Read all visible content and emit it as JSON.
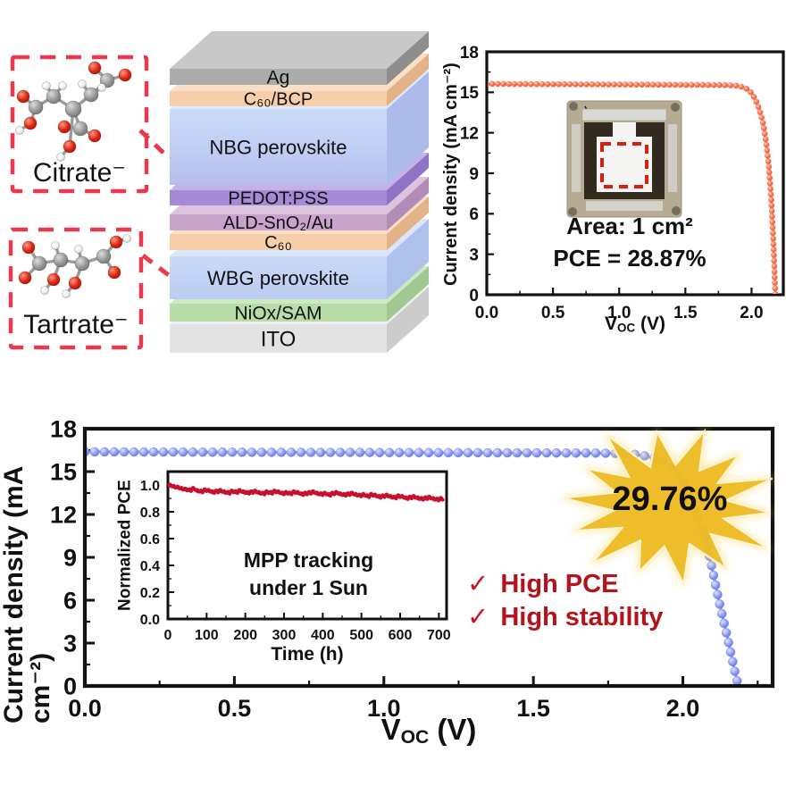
{
  "palette": {
    "box_red": "#E8394E",
    "orange_curve": "#F4714E",
    "blue_curve": "#7B8BF0",
    "mpp_red": "#C8102E",
    "check_red": "#B5121B",
    "check_glyph_red": "#CE1126",
    "star_gold": "#EDB91E",
    "star_glow": "#F7DC6F",
    "axis_black": "#111111"
  },
  "molecule_boxes": [
    {
      "id": "citrate",
      "label": "Citrate⁻",
      "atoms": [
        [
          92,
          12,
          7,
          "O"
        ],
        [
          106,
          26,
          8,
          "C"
        ],
        [
          126,
          20,
          7,
          "O"
        ],
        [
          88,
          42,
          8,
          "C"
        ],
        [
          78,
          30,
          4.5,
          "H"
        ],
        [
          100,
          34,
          4.5,
          "H"
        ],
        [
          68,
          58,
          9,
          "C"
        ],
        [
          46,
          44,
          8,
          "C"
        ],
        [
          38,
          32,
          4.5,
          "H"
        ],
        [
          56,
          32,
          4.5,
          "H"
        ],
        [
          26,
          56,
          8,
          "C"
        ],
        [
          12,
          44,
          7,
          "O"
        ],
        [
          20,
          74,
          7,
          "O"
        ],
        [
          8,
          82,
          4.5,
          "H"
        ],
        [
          76,
          80,
          8,
          "C"
        ],
        [
          58,
          78,
          7,
          "O"
        ],
        [
          92,
          88,
          7,
          "O"
        ],
        [
          64,
          100,
          7,
          "O"
        ],
        [
          54,
          112,
          4.5,
          "H"
        ]
      ],
      "bonds": [
        [
          0,
          1
        ],
        [
          1,
          2
        ],
        [
          1,
          3
        ],
        [
          3,
          6
        ],
        [
          4,
          3
        ],
        [
          5,
          3
        ],
        [
          6,
          7
        ],
        [
          7,
          10
        ],
        [
          8,
          7
        ],
        [
          9,
          7
        ],
        [
          10,
          11
        ],
        [
          10,
          12
        ],
        [
          12,
          13
        ],
        [
          6,
          14
        ],
        [
          14,
          15
        ],
        [
          14,
          16
        ],
        [
          6,
          17
        ],
        [
          17,
          18
        ]
      ]
    },
    {
      "id": "tartrate",
      "label": "Tartrate⁻",
      "atoms": [
        [
          20,
          20,
          7,
          "O"
        ],
        [
          32,
          38,
          8,
          "C"
        ],
        [
          16,
          54,
          7,
          "O"
        ],
        [
          56,
          34,
          8,
          "C"
        ],
        [
          50,
          18,
          4.5,
          "H"
        ],
        [
          48,
          56,
          7,
          "O"
        ],
        [
          38,
          68,
          4.5,
          "H"
        ],
        [
          80,
          38,
          8,
          "C"
        ],
        [
          76,
          22,
          4.5,
          "H"
        ],
        [
          72,
          60,
          7,
          "O"
        ],
        [
          62,
          72,
          4.5,
          "H"
        ],
        [
          104,
          30,
          8,
          "C"
        ],
        [
          118,
          14,
          7,
          "O"
        ],
        [
          130,
          10,
          4.5,
          "H"
        ],
        [
          116,
          48,
          7,
          "O"
        ]
      ],
      "bonds": [
        [
          0,
          1
        ],
        [
          1,
          2
        ],
        [
          1,
          3
        ],
        [
          3,
          4
        ],
        [
          3,
          5
        ],
        [
          5,
          6
        ],
        [
          3,
          7
        ],
        [
          7,
          8
        ],
        [
          7,
          9
        ],
        [
          9,
          10
        ],
        [
          7,
          11
        ],
        [
          11,
          12
        ],
        [
          12,
          13
        ],
        [
          11,
          14
        ]
      ]
    }
  ],
  "device_stack": {
    "layers": [
      {
        "label": "Ag",
        "front": "#ACACAC",
        "top": "#C8C8C8",
        "side": "#8E8E8E"
      },
      {
        "label": "C₆₀/BCP",
        "front": "#F6CEA9",
        "top": "#FADFC6",
        "side": "#E3B288"
      },
      {
        "label": "NBG perovskite",
        "front": "#CBDDF8",
        "front2": "#B6BFEF",
        "top": "#DDE9FC",
        "side": "#ACBBEC"
      },
      {
        "label": "PEDOT:PSS",
        "front": "#A58BD6",
        "top": "#C3B2E8",
        "side": "#8F73C4"
      },
      {
        "label": "ALD-SnO₂/Au",
        "front": "#C8A3CB",
        "top": "#DCC4DE",
        "side": "#B28CB6"
      },
      {
        "label": "C₆₀",
        "front": "#F6CEA9",
        "top": "#FADFC6",
        "side": "#E3B288"
      },
      {
        "label": "WBG perovskite",
        "front": "#C8DAF7",
        "front2": "#BCCBF2",
        "top": "#DAE7FB",
        "side": "#AEC2EC"
      },
      {
        "label": "NiOx/SAM",
        "front": "#B7DCA7",
        "top": "#CDE9C0",
        "side": "#A2C892"
      },
      {
        "label": "ITO",
        "front": "#E3E3E3",
        "top": "#EFEFEF",
        "side": "#CCCCCC"
      }
    ]
  },
  "chart_data": [
    {
      "id": "jv_small",
      "type": "line",
      "title": "",
      "ylabel": "Current density (mA cm⁻²)",
      "xlabel_parts": {
        "main": "V",
        "sub": "OC",
        "unit": " (V)"
      },
      "xlim": [
        0,
        2.24
      ],
      "ylim": [
        0,
        18
      ],
      "xticks": [
        0.0,
        0.5,
        1.0,
        1.5,
        2.0
      ],
      "yticks": [
        0,
        3,
        6,
        9,
        12,
        15,
        18
      ],
      "grid": false,
      "legend": "none",
      "annotations": {
        "area": "Area: 1 cm²",
        "pce": "PCE = 28.87%"
      },
      "series": [
        {
          "name": "J-V curve (1 cm2)",
          "color": "#F4714E",
          "x": [
            0,
            0.1,
            0.2,
            0.3,
            0.4,
            0.5,
            0.6,
            0.7,
            0.8,
            0.9,
            1.0,
            1.1,
            1.2,
            1.3,
            1.4,
            1.5,
            1.6,
            1.7,
            1.8,
            1.88,
            1.92,
            1.96,
            2.0,
            2.03,
            2.06,
            2.09,
            2.11,
            2.13,
            2.15,
            2.165,
            2.175,
            2.18
          ],
          "y": [
            15.62,
            15.62,
            15.61,
            15.61,
            15.6,
            15.6,
            15.6,
            15.59,
            15.59,
            15.58,
            15.58,
            15.57,
            15.57,
            15.56,
            15.56,
            15.55,
            15.55,
            15.54,
            15.53,
            15.5,
            15.42,
            15.28,
            14.95,
            14.45,
            13.7,
            12.6,
            11.3,
            9.6,
            6.9,
            3.9,
            1.2,
            0.05
          ]
        }
      ]
    },
    {
      "id": "jv_large",
      "type": "line",
      "title": "",
      "ylabel": "Current density (mA cm⁻²)",
      "xlabel_parts": {
        "main": "V",
        "sub": "OC",
        "unit": " (V)"
      },
      "xlim": [
        0,
        2.3
      ],
      "ylim": [
        0,
        18
      ],
      "xticks": [
        0.0,
        0.5,
        1.0,
        1.5,
        2.0
      ],
      "yticks": [
        0,
        3,
        6,
        9,
        12,
        15,
        18
      ],
      "grid": false,
      "legend": "none",
      "annotations": {
        "star": "29.76%",
        "checks": [
          {
            "glyph": "✓",
            "label": "High PCE"
          },
          {
            "glyph": "✓",
            "label": "High stability"
          }
        ]
      },
      "series": [
        {
          "name": "J-V curve tandem",
          "color": "#7B8BF0",
          "x": [
            0,
            0.1,
            0.2,
            0.3,
            0.4,
            0.5,
            0.6,
            0.7,
            0.8,
            0.9,
            1.0,
            1.1,
            1.2,
            1.3,
            1.4,
            1.5,
            1.6,
            1.7,
            1.78,
            1.84,
            1.9,
            1.95,
            1.99,
            2.02,
            2.045,
            2.07,
            2.095,
            2.12,
            2.15,
            2.175,
            2.185
          ],
          "y": [
            16.38,
            16.38,
            16.37,
            16.37,
            16.36,
            16.36,
            16.35,
            16.35,
            16.34,
            16.34,
            16.33,
            16.33,
            16.32,
            16.32,
            16.31,
            16.31,
            16.3,
            16.3,
            16.27,
            16.2,
            16.0,
            15.6,
            14.7,
            13.4,
            12.1,
            10.7,
            8.5,
            6.0,
            3.3,
            0.9,
            0.05
          ]
        }
      ]
    },
    {
      "id": "mpp_inset",
      "type": "scatter",
      "title": "",
      "ylabel": "Normalized PCE",
      "xlabel": "Time (h)",
      "note_line1": "MPP tracking",
      "note_line2": "under 1 Sun",
      "xlim": [
        0,
        720
      ],
      "ylim": [
        0,
        1.1
      ],
      "xticks": [
        0,
        100,
        200,
        300,
        400,
        500,
        600,
        700
      ],
      "yticks": [
        0.0,
        0.2,
        0.4,
        0.6,
        0.8,
        1.0
      ],
      "grid": false,
      "legend": "none",
      "series": [
        {
          "name": "Normalized PCE",
          "color": "#C8102E",
          "x": [
            5,
            15,
            25,
            35,
            45,
            55,
            65,
            75,
            85,
            95,
            105,
            115,
            125,
            135,
            145,
            155,
            165,
            175,
            185,
            195,
            205,
            215,
            225,
            235,
            245,
            255,
            265,
            275,
            285,
            295,
            305,
            315,
            325,
            335,
            345,
            355,
            365,
            375,
            385,
            395,
            405,
            415,
            425,
            435,
            445,
            455,
            465,
            475,
            485,
            495,
            505,
            515,
            525,
            535,
            545,
            555,
            565,
            575,
            585,
            595,
            605,
            615,
            625,
            635,
            645,
            655,
            665,
            675,
            685,
            695,
            705
          ],
          "y": [
            1.0,
            0.99,
            0.985,
            0.975,
            0.97,
            0.965,
            0.975,
            0.96,
            0.955,
            0.965,
            0.96,
            0.95,
            0.955,
            0.96,
            0.95,
            0.945,
            0.955,
            0.95,
            0.96,
            0.95,
            0.945,
            0.95,
            0.955,
            0.945,
            0.94,
            0.95,
            0.945,
            0.955,
            0.95,
            0.94,
            0.945,
            0.94,
            0.95,
            0.945,
            0.935,
            0.94,
            0.945,
            0.95,
            0.94,
            0.935,
            0.94,
            0.93,
            0.94,
            0.945,
            0.935,
            0.93,
            0.935,
            0.94,
            0.93,
            0.925,
            0.93,
            0.92,
            0.93,
            0.925,
            0.915,
            0.92,
            0.925,
            0.915,
            0.91,
            0.92,
            0.915,
            0.905,
            0.91,
            0.915,
            0.905,
            0.9,
            0.905,
            0.91,
            0.9,
            0.895,
            0.9
          ]
        }
      ]
    }
  ]
}
